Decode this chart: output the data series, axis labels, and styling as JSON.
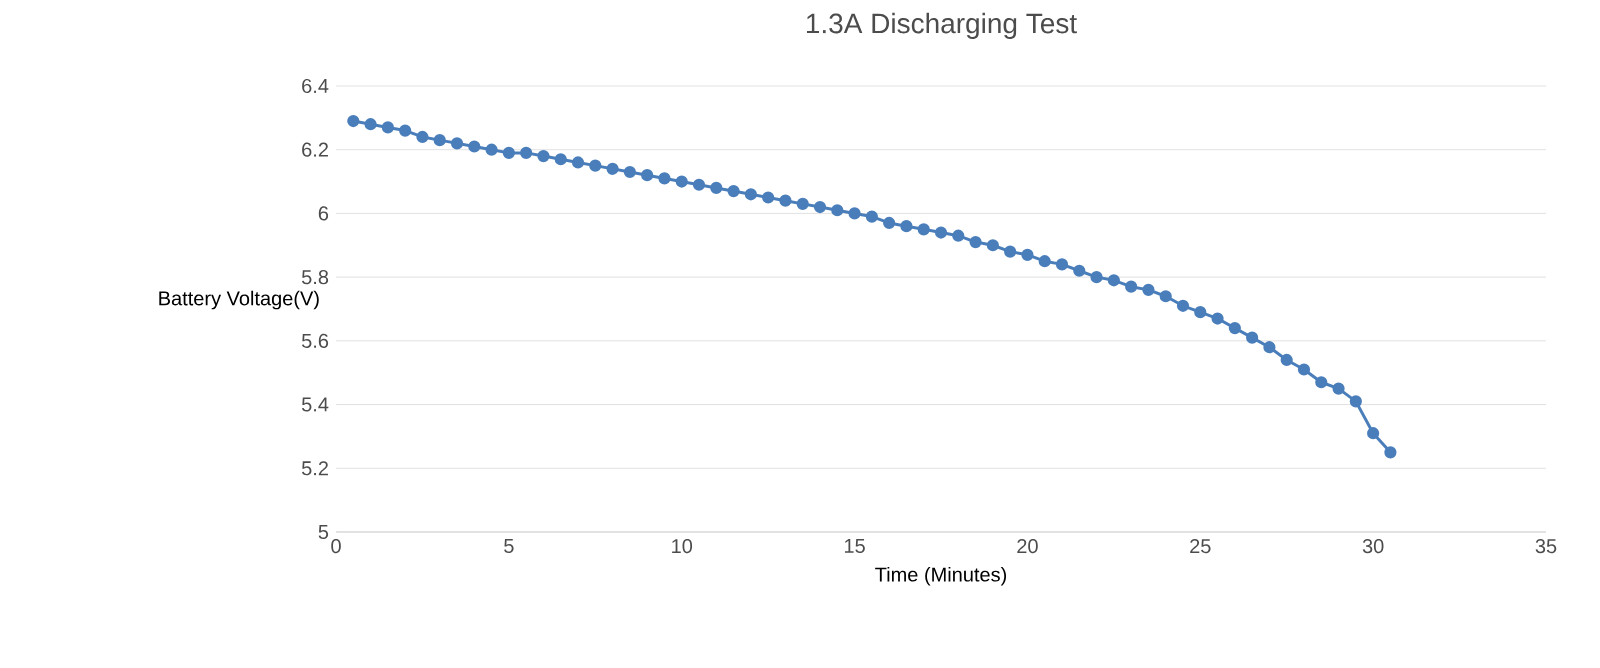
{
  "chart_data": {
    "type": "line",
    "title": "1.3A Discharging Test",
    "xlabel": "Time (Minutes)",
    "ylabel": "Battery Voltage(V)",
    "xlim": [
      0,
      35
    ],
    "xticks": [
      0,
      5,
      10,
      15,
      20,
      25,
      30,
      35
    ],
    "ylim": [
      5,
      6.4
    ],
    "yticks": [
      5,
      5.2,
      5.4,
      5.6,
      5.8,
      6,
      6.2,
      6.4
    ],
    "grid": "y",
    "marker": "circle",
    "line_style": "solid",
    "series": [
      {
        "color": "#4a7ebb",
        "x": [
          0.5,
          1,
          1.5,
          2,
          2.5,
          3,
          3.5,
          4,
          4.5,
          5,
          5.5,
          6,
          6.5,
          7,
          7.5,
          8,
          8.5,
          9,
          9.5,
          10,
          10.5,
          11,
          11.5,
          12,
          12.5,
          13,
          13.5,
          14,
          14.5,
          15,
          15.5,
          16,
          16.5,
          17,
          17.5,
          18,
          18.5,
          19,
          19.5,
          20,
          20.5,
          21,
          21.5,
          22,
          22.5,
          23,
          23.5,
          24,
          24.5,
          25,
          25.5,
          26,
          26.5,
          27,
          27.5,
          28,
          28.5,
          29,
          29.5,
          30,
          30.5
        ],
        "values": [
          6.29,
          6.28,
          6.27,
          6.26,
          6.24,
          6.23,
          6.22,
          6.21,
          6.2,
          6.19,
          6.19,
          6.18,
          6.17,
          6.16,
          6.15,
          6.14,
          6.13,
          6.12,
          6.11,
          6.1,
          6.09,
          6.08,
          6.07,
          6.06,
          6.05,
          6.04,
          6.03,
          6.02,
          6.01,
          6.0,
          5.99,
          5.97,
          5.96,
          5.95,
          5.94,
          5.93,
          5.91,
          5.9,
          5.88,
          5.87,
          5.85,
          5.84,
          5.82,
          5.8,
          5.79,
          5.77,
          5.76,
          5.74,
          5.71,
          5.69,
          5.67,
          5.64,
          5.61,
          5.58,
          5.54,
          5.51,
          5.47,
          5.45,
          5.41,
          5.31,
          5.25
        ]
      }
    ]
  }
}
